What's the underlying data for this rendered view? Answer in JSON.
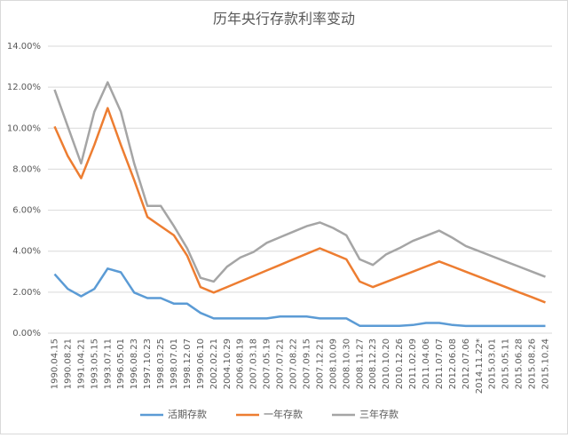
{
  "chart_data": {
    "type": "line",
    "title": "历年央行存款利率变动",
    "categories": [
      "1990.04.15",
      "1990.08.21",
      "1991.04.21",
      "1993.05.15",
      "1993.07.11",
      "1996.05.01",
      "1996.08.23",
      "1997.10.23",
      "1998.03.25",
      "1998.07.01",
      "1998.12.07",
      "1999.06.10",
      "2002.02.21",
      "2004.10.29",
      "2006.08.19",
      "2007.03.18",
      "2007.05.19",
      "2007.07.21",
      "2007.08.22",
      "2007.09.15",
      "2007.12.21",
      "2008.10.09",
      "2008.10.30",
      "2008.11.27",
      "2008.12.23",
      "2010.10.20",
      "2010.12.26",
      "2011.02.09",
      "2011.04.06",
      "2011.07.07",
      "2012.06.08",
      "2012.07.06",
      "2014.11.22*",
      "2015.03.01",
      "2015.05.11",
      "2015.06.28",
      "2015.08.26",
      "2015.10.24"
    ],
    "series": [
      {
        "name": "活期存款",
        "color": "#5b9bd5",
        "values": [
          2.88,
          2.16,
          1.8,
          2.16,
          3.15,
          2.97,
          1.98,
          1.71,
          1.71,
          1.44,
          1.44,
          0.99,
          0.72,
          0.72,
          0.72,
          0.72,
          0.72,
          0.81,
          0.81,
          0.81,
          0.72,
          0.72,
          0.72,
          0.36,
          0.36,
          0.36,
          0.36,
          0.4,
          0.5,
          0.5,
          0.4,
          0.35,
          0.35,
          0.35,
          0.35,
          0.35,
          0.35,
          0.35
        ]
      },
      {
        "name": "一年存款",
        "color": "#ed7d31",
        "values": [
          10.08,
          8.64,
          7.56,
          9.18,
          10.98,
          9.18,
          7.47,
          5.67,
          5.22,
          4.77,
          3.78,
          2.25,
          1.98,
          2.25,
          2.52,
          2.79,
          3.06,
          3.33,
          3.6,
          3.87,
          4.14,
          3.87,
          3.6,
          2.52,
          2.25,
          2.5,
          2.75,
          3.0,
          3.25,
          3.5,
          3.25,
          3.0,
          2.75,
          2.5,
          2.25,
          2.0,
          1.75,
          1.5
        ]
      },
      {
        "name": "三年存款",
        "color": "#a5a5a5",
        "values": [
          11.88,
          10.08,
          8.28,
          10.8,
          12.24,
          10.8,
          8.28,
          6.21,
          6.21,
          5.22,
          4.14,
          2.7,
          2.52,
          3.24,
          3.69,
          3.96,
          4.41,
          4.68,
          4.95,
          5.22,
          5.4,
          5.13,
          4.77,
          3.6,
          3.33,
          3.85,
          4.15,
          4.5,
          4.75,
          5.0,
          4.65,
          4.25,
          4.0,
          3.75,
          3.5,
          3.25,
          3.0,
          2.75
        ]
      }
    ],
    "ylim": [
      0,
      14
    ],
    "yticks": [
      {
        "value": 0,
        "label": "0.00%"
      },
      {
        "value": 2,
        "label": "2.00%"
      },
      {
        "value": 4,
        "label": "4.00%"
      },
      {
        "value": 6,
        "label": "6.00%"
      },
      {
        "value": 8,
        "label": "8.00%"
      },
      {
        "value": 10,
        "label": "10.00%"
      },
      {
        "value": 12,
        "label": "12.00%"
      },
      {
        "value": 14,
        "label": "14.00%"
      }
    ],
    "grid": true,
    "legend": "bottom"
  }
}
